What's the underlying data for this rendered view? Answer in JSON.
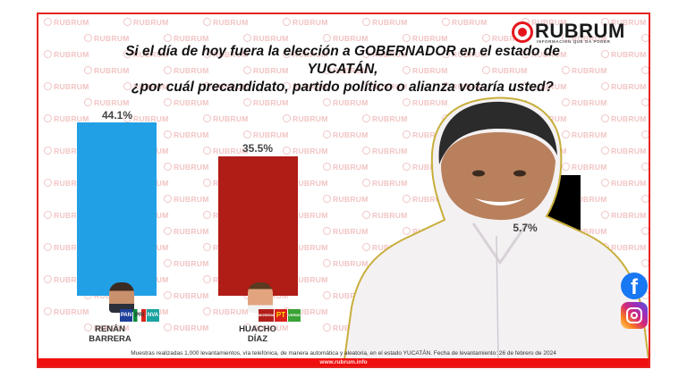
{
  "brand": {
    "name": "RUBRUM",
    "tagline": "INFORMACIÓN QUE DA PODER",
    "watermark": "RUBRUM",
    "website": "www.rubrum.info",
    "accent_color": "#e5161b"
  },
  "title": {
    "line1": "Si el día de hoy fuera la elección a GOBERNADOR en el estado de YUCATÁN,",
    "line2": "¿por cuál precandidato, partido político o alianza votaría usted?"
  },
  "chart_data": {
    "type": "bar",
    "title": "Si el día de hoy fuera la elección a GOBERNADOR en el estado de YUCATÁN, ¿por cuál precandidato, partido político o alianza votaría usted?",
    "categories": [
      "RENÁN BARRERA",
      "HUACHO DÍAZ",
      "(obscured)"
    ],
    "values": [
      44.1,
      35.5,
      5.7
    ],
    "labels": [
      "44.1%",
      "35.5%",
      "5.7%"
    ],
    "colors": [
      "#22a0e6",
      "#b01c16",
      "#000000"
    ],
    "xlabel": "",
    "ylabel": "",
    "grid": false,
    "legend": "none"
  },
  "candidates": [
    {
      "name_line1": "RENÁN",
      "name_line2": "BARRERA",
      "value_label": "44.1%",
      "parties": [
        "PAN",
        "PRI",
        "NVA"
      ]
    },
    {
      "name_line1": "HUACHO",
      "name_line2": "DÍAZ",
      "value_label": "35.5%",
      "parties": [
        "MORENA",
        "PT",
        "VERDE"
      ]
    },
    {
      "name_line1": "",
      "name_line2": "",
      "value_label": "5.7%",
      "parties": []
    }
  ],
  "social": {
    "facebook_icon": "facebook-icon",
    "instagram_icon": "instagram-icon",
    "facebook_glyph": "f"
  },
  "footnote": "Muestras realizadas 1,000 levantamientos, vía telefónica, de manera automática y aleatoria, en el estado YUCATÁN. Fecha de levantamiento: 26 de febrero de 2024"
}
